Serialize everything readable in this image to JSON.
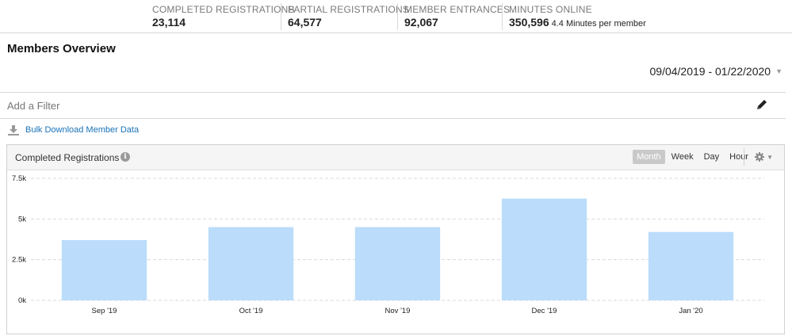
{
  "stats": [
    {
      "label": "COMPLETED REGISTRATIONS",
      "value": "23,114",
      "sub": ""
    },
    {
      "label": "PARTIAL REGISTRATIONS",
      "value": "64,577",
      "sub": ""
    },
    {
      "label": "MEMBER ENTRANCES",
      "value": "92,067",
      "sub": ""
    },
    {
      "label": "MINUTES ONLINE",
      "value": "350,596",
      "sub": "4.4 Minutes per member"
    }
  ],
  "page": {
    "title": "Members Overview"
  },
  "date_range": {
    "value": "09/04/2019 - 01/22/2020"
  },
  "filter": {
    "placeholder": "Add a Filter"
  },
  "bulk": {
    "label": "Bulk Download Member Data"
  },
  "chart_panel": {
    "title": "Completed Registrations",
    "info_glyph": "i",
    "tabs": [
      {
        "label": "Month",
        "active": true
      },
      {
        "label": "Week",
        "active": false
      },
      {
        "label": "Day",
        "active": false
      },
      {
        "label": "Hour",
        "active": false
      }
    ]
  },
  "colors": {
    "bar": "#bbdcfb",
    "link": "#1a73b8",
    "active_tab": "#c9c9c9"
  },
  "icons": {
    "pencil": "pencil-icon",
    "download": "download-icon",
    "info": "info-icon",
    "gear": "gear-icon"
  },
  "chart_data": {
    "type": "bar",
    "categories": [
      "Sep '19",
      "Oct '19",
      "Nov '19",
      "Dec '19",
      "Jan '20"
    ],
    "values": [
      3700,
      4500,
      4500,
      6250,
      4200
    ],
    "ylim": [
      0,
      7500
    ],
    "yticks": [
      0,
      2500,
      5000,
      7500
    ],
    "ytick_labels": [
      "0k",
      "2.5k",
      "5k",
      "7.5k"
    ],
    "grid": true,
    "title": "",
    "xlabel": "",
    "ylabel": ""
  }
}
